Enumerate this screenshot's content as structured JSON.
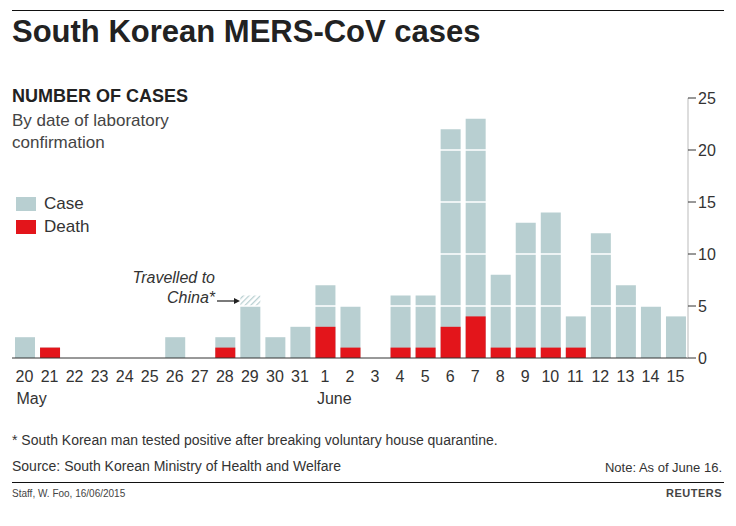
{
  "chart_data": {
    "type": "bar",
    "title": "South Korean MERS-CoV cases",
    "subtitle": "NUMBER OF CASES",
    "description": "By date of laboratory confirmation",
    "categories": [
      "20",
      "21",
      "22",
      "23",
      "24",
      "25",
      "26",
      "27",
      "28",
      "29",
      "30",
      "31",
      "1",
      "2",
      "3",
      "4",
      "5",
      "6",
      "7",
      "8",
      "9",
      "10",
      "11",
      "12",
      "13",
      "14",
      "15"
    ],
    "month_labels": [
      {
        "index": 0,
        "label": "May"
      },
      {
        "index": 12,
        "label": "June"
      }
    ],
    "series": [
      {
        "name": "Case",
        "color": "#b8cfd1",
        "values": [
          2,
          1,
          0,
          0,
          0,
          0,
          2,
          0,
          2,
          5,
          2,
          3,
          7,
          5,
          0,
          6,
          6,
          22,
          23,
          8,
          13,
          14,
          4,
          12,
          7,
          5,
          4
        ]
      },
      {
        "name": "Death",
        "color": "#e3151b",
        "values": [
          0,
          1,
          0,
          0,
          0,
          0,
          0,
          0,
          1,
          0,
          0,
          0,
          3,
          1,
          0,
          1,
          1,
          3,
          4,
          1,
          1,
          1,
          1,
          0,
          0,
          0,
          0
        ]
      }
    ],
    "annotation": {
      "text": "Travelled to China*",
      "index": 9,
      "range": [
        5,
        6
      ]
    },
    "ylim": [
      0,
      25
    ],
    "yticks": [
      0,
      5,
      10,
      15,
      20,
      25
    ],
    "grid": true,
    "stacked": false,
    "legend": "upper left",
    "footnote": "* South Korean man tested positive after breaking voluntary house quarantine.",
    "source": "Source: South Korean Ministry of Health and Welfare",
    "note": "Note: As of June  16.",
    "credit": "Staff, W. Foo, 16/06/2015",
    "logo": "REUTERS"
  }
}
